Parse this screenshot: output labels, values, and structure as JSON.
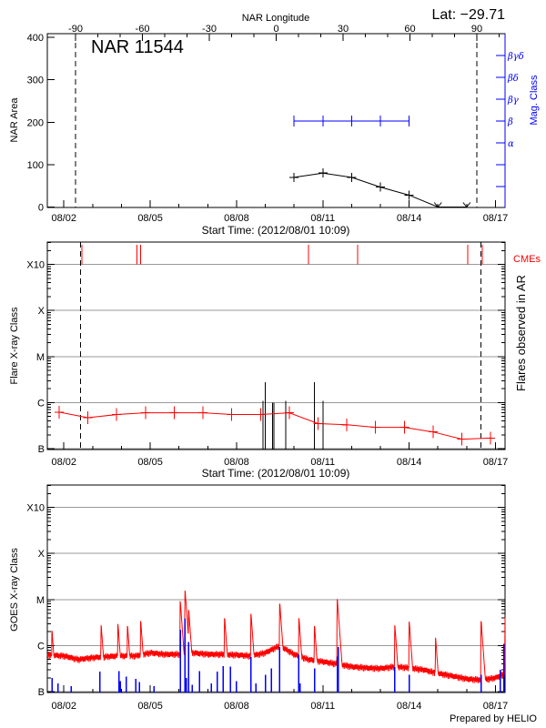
{
  "colors": {
    "axis": "#000000",
    "mag_class": "#0000ff",
    "flare_line": "#ff0000",
    "cme": "#ff0000",
    "goes_long": "#ff0000",
    "goes_short": "#0000ff",
    "grid": "#999999"
  },
  "chart_data": [
    {
      "type": "line",
      "panel": "nar",
      "title": "NAR 11544",
      "corner_label": "Lat: −29.71",
      "top_axis_label": "NAR Longitude",
      "top_axis_ticks": [
        "-90",
        "-60",
        "-30",
        "0",
        "30",
        "60",
        "90"
      ],
      "top_axis_range": [
        -90,
        90
      ],
      "limb_marker_longitudes": [
        -90,
        90
      ],
      "ylabel": "NAR Area",
      "ylim": [
        0,
        410
      ],
      "yticks": [
        "0",
        "100",
        "200",
        "300",
        "400"
      ],
      "right_axis_label": "Mag. Class",
      "right_axis_ticks": [
        "α",
        "β",
        "βγ",
        "βδ",
        "βγδ"
      ],
      "xlabel": "Start Time: (2012/08/01 10:09)",
      "xticks": [
        "08/02",
        "08/05",
        "08/08",
        "08/11",
        "08/14",
        "08/17"
      ],
      "xlim": [
        "2012-08-01 10:09",
        "2012-08-17 08:00"
      ],
      "series": [
        {
          "axis": "area",
          "x": [
            "2012-08-10 00:00",
            "2012-08-11 00:00",
            "2012-08-12 00:00",
            "2012-08-13 00:00",
            "2012-08-14 00:00",
            "2012-08-15 00:00",
            "2012-08-16 00:00"
          ],
          "values": [
            70,
            80,
            70,
            47,
            28,
            0,
            0
          ]
        },
        {
          "axis": "mag_class",
          "x": [
            "2012-08-10 00:00",
            "2012-08-11 00:00",
            "2012-08-12 00:00",
            "2012-08-13 00:00",
            "2012-08-14 00:00"
          ],
          "values": [
            "β",
            "β",
            "β",
            "β",
            "β"
          ]
        }
      ]
    },
    {
      "type": "line",
      "panel": "flares",
      "ylabel": "Flare X-ray Class",
      "right_label": "Flares observed in AR",
      "cme_label": "CMEs",
      "yscale": "log",
      "ylim": [
        1e-07,
        0.001
      ],
      "yticks": [
        {
          "label": "B",
          "value": 1e-07
        },
        {
          "label": "C",
          "value": 1e-06
        },
        {
          "label": "M",
          "value": 1e-05
        },
        {
          "label": "X",
          "value": 0.0001
        },
        {
          "label": "X10",
          "value": 0.001
        }
      ],
      "grid": true,
      "xlabel": "Start Time: (2012/08/01 10:09)",
      "xticks": [
        "08/02",
        "08/05",
        "08/08",
        "08/11",
        "08/14",
        "08/17"
      ],
      "xlim": [
        "2012-08-01 10:09",
        "2012-08-17 08:00"
      ],
      "limb_marker_dates": [
        "2012-08-02 14:00",
        "2012-08-16 12:00"
      ],
      "background": {
        "x": [
          "2012-08-01 20:00",
          "2012-08-02 20:00",
          "2012-08-03 20:00",
          "2012-08-04 20:00",
          "2012-08-05 20:00",
          "2012-08-06 20:00",
          "2012-08-07 20:00",
          "2012-08-08 20:00",
          "2012-08-09 20:00",
          "2012-08-10 20:00",
          "2012-08-11 20:00",
          "2012-08-12 20:00",
          "2012-08-13 20:00",
          "2012-08-14 20:00",
          "2012-08-15 20:00",
          "2012-08-16 20:00"
        ],
        "values": [
          6.2e-07,
          4.7e-07,
          5.5e-07,
          6e-07,
          6e-07,
          6e-07,
          5.5e-07,
          5.5e-07,
          6e-07,
          3.5e-07,
          3.3e-07,
          2.9e-07,
          2.9e-07,
          2.3e-07,
          1.6e-07,
          1.7e-07
        ]
      },
      "flares": {
        "x": [
          "2012-08-08 22:00",
          "2012-08-09 00:00",
          "2012-08-09 06:00",
          "2012-08-09 07:00",
          "2012-08-09 17:00",
          "2012-08-10 17:00",
          "2012-08-11 00:00"
        ],
        "values": [
          1.1e-06,
          2.8e-06,
          1e-06,
          1e-06,
          1.1e-06,
          2.8e-06,
          1.1e-06
        ]
      },
      "cmes": [
        "2012-08-02 15:00",
        "2012-08-04 13:00",
        "2012-08-04 16:00",
        "2012-08-10 12:00",
        "2012-08-12 05:00",
        "2012-08-16 01:00",
        "2012-08-16 13:00"
      ]
    },
    {
      "type": "line",
      "panel": "goes",
      "ylabel": "GOES X-ray Class",
      "yscale": "log",
      "ylim": [
        1e-07,
        0.0016
      ],
      "yticks": [
        {
          "label": "B",
          "value": 1e-07
        },
        {
          "label": "C",
          "value": 1e-06
        },
        {
          "label": "M",
          "value": 1e-05
        },
        {
          "label": "X",
          "value": 0.0001
        },
        {
          "label": "X10",
          "value": 0.001
        }
      ],
      "grid": true,
      "xticks": [
        "08/02",
        "08/05",
        "08/08",
        "08/11",
        "08/14",
        "08/17"
      ],
      "xlim": [
        "2012-08-01 10:09",
        "2012-08-17 08:00"
      ],
      "long_channel_background": {
        "x": [
          "2012-08-01 10:09",
          "2012-08-02 00:00",
          "2012-08-02 12:00",
          "2012-08-03 00:00",
          "2012-08-03 12:00",
          "2012-08-04 00:00",
          "2012-08-04 12:00",
          "2012-08-05 00:00",
          "2012-08-05 12:00",
          "2012-08-06 00:00",
          "2012-08-06 12:00",
          "2012-08-07 00:00",
          "2012-08-07 12:00",
          "2012-08-08 00:00",
          "2012-08-08 12:00",
          "2012-08-09 00:00",
          "2012-08-09 12:00",
          "2012-08-10 00:00",
          "2012-08-10 12:00",
          "2012-08-11 00:00",
          "2012-08-11 12:00",
          "2012-08-12 00:00",
          "2012-08-12 12:00",
          "2012-08-13 00:00",
          "2012-08-13 12:00",
          "2012-08-14 00:00",
          "2012-08-14 12:00",
          "2012-08-15 00:00",
          "2012-08-15 12:00",
          "2012-08-16 00:00",
          "2012-08-16 12:00",
          "2012-08-17 00:00",
          "2012-08-17 08:00"
        ],
        "values": [
          6.3e-07,
          6e-07,
          5e-07,
          5.5e-07,
          5.8e-07,
          6e-07,
          6e-07,
          7e-07,
          6.5e-07,
          6.5e-07,
          7e-07,
          6.5e-07,
          6.5e-07,
          6.3e-07,
          6e-07,
          7e-07,
          1e-06,
          6.5e-07,
          5e-07,
          4.5e-07,
          4e-07,
          3.5e-07,
          3.3e-07,
          3.2e-07,
          3.5e-07,
          3.3e-07,
          3e-07,
          2.5e-07,
          2.2e-07,
          1.9e-07,
          1.8e-07,
          2e-07,
          2.5e-07
        ]
      },
      "long_channel_peaks": {
        "x": [
          "2012-08-01 14:00",
          "2012-08-03 07:00",
          "2012-08-03 21:00",
          "2012-08-04 05:00",
          "2012-08-04 16:00",
          "2012-08-06 01:00",
          "2012-08-06 05:00",
          "2012-08-06 08:00",
          "2012-08-07 14:00",
          "2012-08-08 12:00",
          "2012-08-09 12:00",
          "2012-08-10 04:00",
          "2012-08-10 17:00",
          "2012-08-11 12:00",
          "2012-08-13 12:00",
          "2012-08-14 00:00",
          "2012-08-14 22:00",
          "2012-08-16 12:00",
          "2012-08-17 08:00"
        ],
        "values": [
          2.3e-06,
          3e-06,
          3.2e-06,
          2.9e-06,
          3.7e-06,
          1e-05,
          1.7e-05,
          6.5e-06,
          4.3e-06,
          5.3e-06,
          8.9e-06,
          4.3e-06,
          2.9e-06,
          1.1e-05,
          3e-06,
          3.6e-06,
          1.6e-06,
          3.7e-06,
          4.6e-06
        ]
      },
      "short_channel_events": {
        "x": [
          "2012-08-01 14:00",
          "2012-08-01 19:00",
          "2012-08-02 06:00",
          "2012-08-03 06:00",
          "2012-08-03 22:00",
          "2012-08-03 23:00",
          "2012-08-04 04:00",
          "2012-08-04 12:00",
          "2012-08-04 15:00",
          "2012-08-05 03:00",
          "2012-08-06 01:00",
          "2012-08-06 05:00",
          "2012-08-06 06:00",
          "2012-08-06 08:00",
          "2012-08-06 11:00",
          "2012-08-06 17:00",
          "2012-08-07 03:00",
          "2012-08-07 08:00",
          "2012-08-07 13:00",
          "2012-08-07 19:00",
          "2012-08-08 00:00",
          "2012-08-08 12:00",
          "2012-08-08 16:00",
          "2012-08-09 00:00",
          "2012-08-09 05:00",
          "2012-08-09 12:00",
          "2012-08-10 04:00",
          "2012-08-10 05:00",
          "2012-08-10 17:00",
          "2012-08-11 12:00",
          "2012-08-11 13:00",
          "2012-08-13 12:00",
          "2012-08-14 00:00",
          "2012-08-16 12:00",
          "2012-08-17 04:00",
          "2012-08-17 07:00"
        ],
        "values": [
          2e-07,
          1.5e-07,
          1.3e-07,
          2.7e-07,
          2.8e-07,
          1.7e-07,
          2.1e-07,
          1.9e-07,
          1.6e-07,
          1.3e-07,
          2.2e-06,
          3.9e-06,
          2e-07,
          1.2e-06,
          1.4e-07,
          2.8e-07,
          1.5e-07,
          2.7e-07,
          3.6e-07,
          3.5e-07,
          1.7e-07,
          5.6e-07,
          1.5e-07,
          2.3e-07,
          3.2e-07,
          9.3e-07,
          6.3e-07,
          1.5e-07,
          3.2e-07,
          5.8e-07,
          9.3e-07,
          3.4e-07,
          2.3e-07,
          2.3e-07,
          3e-07,
          1.1e-06
        ]
      }
    }
  ],
  "footer": {
    "credit": "Prepared by HELIO"
  }
}
